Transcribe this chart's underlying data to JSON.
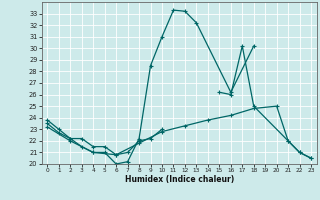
{
  "xlabel": "Humidex (Indice chaleur)",
  "xlim": [
    -0.5,
    23.5
  ],
  "ylim": [
    20,
    34
  ],
  "yticks": [
    20,
    21,
    22,
    23,
    24,
    25,
    26,
    27,
    28,
    29,
    30,
    31,
    32,
    33
  ],
  "xticks": [
    0,
    1,
    2,
    3,
    4,
    5,
    6,
    7,
    8,
    9,
    10,
    11,
    12,
    13,
    14,
    15,
    16,
    17,
    18,
    19,
    20,
    21,
    22,
    23
  ],
  "bg_color": "#cdeaea",
  "line_color": "#006666",
  "grid_color": "#ffffff",
  "s1_x": [
    0,
    1,
    2,
    3,
    4,
    5,
    6,
    7,
    8,
    9,
    10,
    11,
    12,
    13,
    16,
    18
  ],
  "s1_y": [
    23.8,
    23.0,
    22.2,
    21.5,
    21.0,
    21.0,
    20.0,
    20.2,
    22.2,
    28.5,
    31.0,
    33.3,
    33.2,
    32.2,
    26.2,
    30.2
  ],
  "s2_x": [
    0,
    1,
    2,
    3,
    4,
    5,
    6,
    7,
    8,
    9,
    10
  ],
  "s2_y": [
    23.5,
    22.7,
    22.2,
    22.2,
    21.5,
    21.5,
    20.8,
    21.0,
    22.0,
    22.2,
    23.0
  ],
  "s3_x": [
    0,
    2,
    4,
    6,
    8,
    10,
    12,
    14,
    16,
    18,
    20,
    21,
    22,
    23
  ],
  "s3_y": [
    23.2,
    22.0,
    21.0,
    20.8,
    21.8,
    22.8,
    23.3,
    23.8,
    24.2,
    24.8,
    25.0,
    22.0,
    21.0,
    20.5
  ],
  "s4_x": [
    15,
    16,
    17,
    18,
    21,
    22,
    23
  ],
  "s4_y": [
    26.2,
    26.0,
    30.2,
    25.0,
    22.0,
    21.0,
    20.5
  ]
}
